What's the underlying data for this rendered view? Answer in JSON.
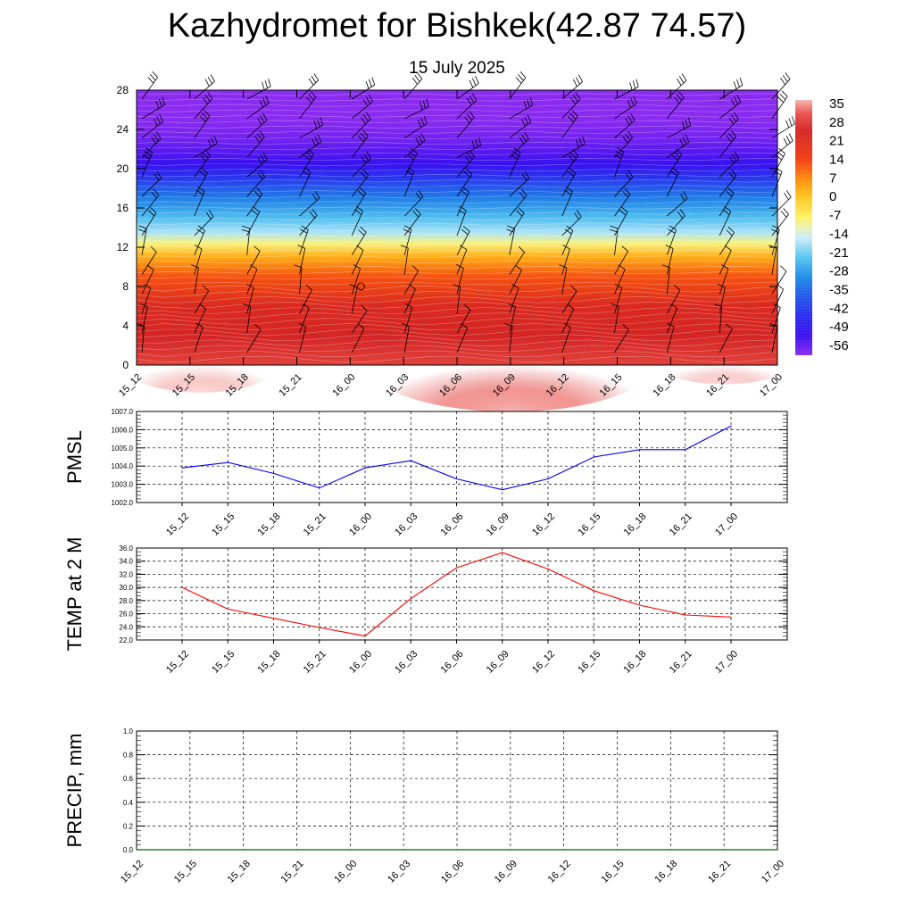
{
  "title": "Kazhydromet for Bishkek(42.87 74.57)",
  "subtitle": "15 July 2025",
  "chart_data": [
    {
      "type": "heatmap",
      "name": "temperature-height-section",
      "x_ticks": [
        "15_12",
        "15_15",
        "15_18",
        "15_21",
        "16_00",
        "16_03",
        "16_06",
        "16_09",
        "16_12",
        "16_15",
        "16_18",
        "16_21",
        "17_00"
      ],
      "y_ticks": [
        "0",
        "4",
        "8",
        "12",
        "16",
        "20",
        "24",
        "28"
      ],
      "ylim": [
        0,
        28
      ],
      "colorbar": {
        "labels": [
          "35",
          "28",
          "21",
          "14",
          "7",
          "0",
          "-7",
          "-14",
          "-21",
          "-28",
          "-35",
          "-42",
          "-49",
          "-56"
        ],
        "stops": [
          {
            "value": 35,
            "color": "#f6b3b0"
          },
          {
            "value": 30,
            "color": "#e8504a"
          },
          {
            "value": 24,
            "color": "#d42624"
          },
          {
            "value": 14,
            "color": "#f23c14"
          },
          {
            "value": 7,
            "color": "#ff8a0a"
          },
          {
            "value": 0,
            "color": "#ffc820"
          },
          {
            "value": -7,
            "color": "#fff36a"
          },
          {
            "value": -14,
            "color": "#cfeefa"
          },
          {
            "value": -21,
            "color": "#58c6f0"
          },
          {
            "value": -28,
            "color": "#1f8ee8"
          },
          {
            "value": -35,
            "color": "#2258e8"
          },
          {
            "value": -42,
            "color": "#2a2df0"
          },
          {
            "value": -49,
            "color": "#3a10f0"
          },
          {
            "value": -56,
            "color": "#8a2bf0"
          }
        ]
      },
      "profile": [
        {
          "height": 0,
          "temp": 28
        },
        {
          "height": 3,
          "temp": 24
        },
        {
          "height": 6,
          "temp": 22
        },
        {
          "height": 9,
          "temp": 12
        },
        {
          "height": 11,
          "temp": 3
        },
        {
          "height": 12.4,
          "temp": -8
        },
        {
          "height": 13.5,
          "temp": -16
        },
        {
          "height": 15,
          "temp": -22
        },
        {
          "height": 17,
          "temp": -30
        },
        {
          "height": 19,
          "temp": -40
        },
        {
          "height": 20.5,
          "temp": -49
        },
        {
          "height": 21.5,
          "temp": -51
        },
        {
          "height": 23,
          "temp": -54
        },
        {
          "height": 25,
          "temp": -57
        },
        {
          "height": 28,
          "temp": -58
        }
      ],
      "surface_warm_peak": {
        "time": "16_09",
        "temp": 35
      }
    },
    {
      "type": "line",
      "name": "pmsl",
      "ylabel": "PMSL",
      "categories": [
        "15_12",
        "15_15",
        "15_18",
        "15_21",
        "16_00",
        "16_03",
        "16_06",
        "16_09",
        "16_12",
        "16_15",
        "16_18",
        "16_21",
        "17_00"
      ],
      "values": [
        1003.9,
        1004.2,
        1003.6,
        1002.8,
        1003.9,
        1004.3,
        1003.3,
        1002.7,
        1003.3,
        1004.5,
        1004.9,
        1004.9,
        1006.2
      ],
      "ylim": [
        1002.0,
        1007.0
      ],
      "y_ticks": [
        "1002.0",
        "1003.0",
        "1004.0",
        "1005.0",
        "1006.0",
        "1007.0"
      ],
      "color": "#0000ff",
      "grid": true
    },
    {
      "type": "line",
      "name": "temp-2m",
      "ylabel": "TEMP at 2 M",
      "categories": [
        "15_12",
        "15_15",
        "15_18",
        "15_21",
        "16_00",
        "16_03",
        "16_06",
        "16_09",
        "16_12",
        "16_15",
        "16_18",
        "16_21",
        "17_00"
      ],
      "values": [
        30.0,
        26.7,
        25.3,
        23.9,
        22.6,
        28.3,
        33.0,
        35.3,
        32.8,
        29.5,
        27.3,
        25.8,
        25.5
      ],
      "ylim": [
        22.0,
        36.0
      ],
      "y_ticks": [
        "22.0",
        "24.0",
        "26.0",
        "28.0",
        "30.0",
        "32.0",
        "34.0",
        "36.0"
      ],
      "color": "#ff0000",
      "grid": true
    },
    {
      "type": "line",
      "name": "precip",
      "ylabel": "PRECIP, mm",
      "categories": [
        "15_12",
        "15_15",
        "15_18",
        "15_21",
        "16_00",
        "16_03",
        "16_06",
        "16_09",
        "16_12",
        "16_15",
        "16_18",
        "16_21",
        "17_00"
      ],
      "values": [
        0,
        0,
        0,
        0,
        0,
        0,
        0,
        0,
        0,
        0,
        0,
        0,
        0
      ],
      "ylim": [
        0.0,
        1.0
      ],
      "y_ticks": [
        "0.0",
        "0.2",
        "0.4",
        "0.6",
        "0.8",
        "1.0"
      ],
      "color": "#006400",
      "grid": true
    }
  ]
}
